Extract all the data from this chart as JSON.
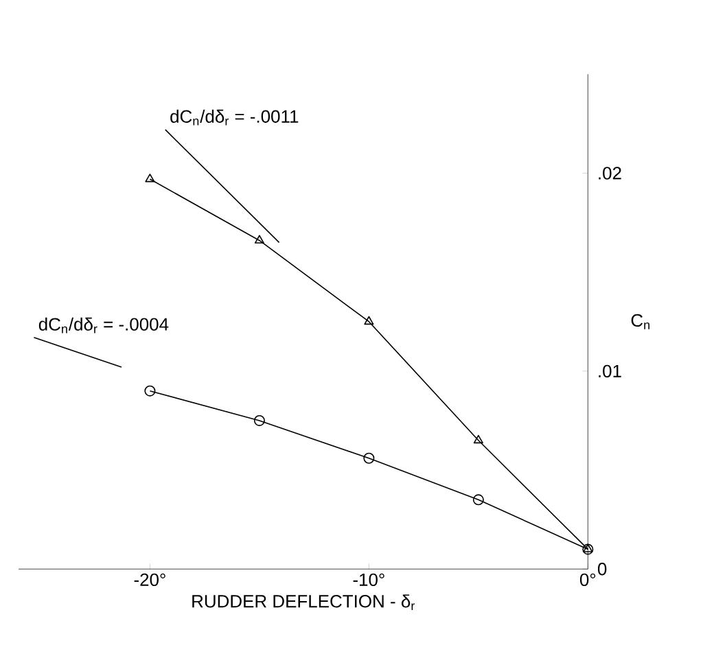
{
  "chart_data": {
    "type": "line",
    "xlabel": "RUDDER DEFLECTION - δ$_{r}$",
    "ylabel": "C$_{n}$",
    "x": [
      -20,
      -15,
      -10,
      -5,
      0
    ],
    "xlim": [
      -26,
      0
    ],
    "ylim": [
      0,
      0.025
    ],
    "xticks": [
      {
        "value": -20,
        "label": "-20°"
      },
      {
        "value": -10,
        "label": "-10°"
      },
      {
        "value": 0,
        "label": "0°"
      }
    ],
    "yticks": [
      0,
      {
        "value": 0.01,
        "label": ".01"
      },
      {
        "value": 0.02,
        "label": ".02"
      }
    ],
    "grid": false,
    "line_style": "solid",
    "series": [
      {
        "color": "#000000",
        "marker": "circle",
        "values": [
          0.009,
          0.0075,
          0.0056,
          0.0035,
          0.001
        ]
      },
      {
        "color": "#000000",
        "marker": "triangle",
        "values": [
          0.0197,
          0.0166,
          0.0125,
          0.0065,
          0.001
        ]
      },
      {
        "color": "#000000",
        "marker": "none",
        "x": [
          -19.3,
          -14.1
        ],
        "values": [
          0.0222,
          0.0165
        ]
      },
      {
        "color": "#000000",
        "marker": "none",
        "x": [
          -25.3,
          -21.3
        ],
        "values": [
          0.0117,
          0.0102
        ]
      }
    ],
    "annotations": [
      "dC$_{n}$/dδ$_{r}$ = -.0011",
      "dC$_{n}$/dδ$_{r}$ = -.0004"
    ]
  }
}
